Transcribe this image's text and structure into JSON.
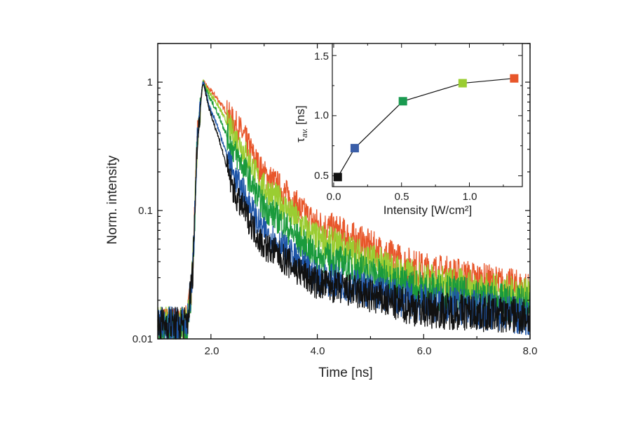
{
  "chart_data": [
    {
      "type": "line",
      "xlabel": "Time [ns]",
      "ylabel": "Norm. intensity",
      "xlim": [
        1.0,
        8.0
      ],
      "ylim": [
        0.01,
        2.0
      ],
      "yscale": "log",
      "grid": false,
      "x_ticks": [
        "2.0",
        "4.0",
        "6.0",
        "8.0"
      ],
      "y_ticks": [
        "0.01",
        "0.1",
        "1"
      ],
      "x": [
        1.0,
        1.55,
        1.65,
        1.75,
        1.85,
        2.0,
        2.5,
        3.0,
        4.0,
        6.0,
        8.0
      ],
      "series": [
        {
          "color": "#e8562a",
          "values": [
            0.013,
            0.013,
            0.03,
            0.4,
            1.0,
            0.85,
            0.45,
            0.19,
            0.078,
            0.034,
            0.024
          ]
        },
        {
          "color": "#9acd32",
          "values": [
            0.013,
            0.013,
            0.03,
            0.4,
            1.0,
            0.8,
            0.35,
            0.15,
            0.06,
            0.028,
            0.021
          ]
        },
        {
          "color": "#1a9a3c",
          "values": [
            0.011,
            0.011,
            0.03,
            0.4,
            1.0,
            0.72,
            0.26,
            0.106,
            0.044,
            0.024,
            0.018
          ]
        },
        {
          "color": "#1f56a8",
          "values": [
            0.013,
            0.013,
            0.03,
            0.4,
            1.0,
            0.6,
            0.165,
            0.068,
            0.03,
            0.019,
            0.015
          ]
        },
        {
          "color": "#111111",
          "values": [
            0.013,
            0.013,
            0.03,
            0.4,
            1.0,
            0.55,
            0.12,
            0.053,
            0.027,
            0.017,
            0.015
          ]
        }
      ]
    },
    {
      "type": "line",
      "xlabel": "Intensity [W/cm²]",
      "ylabel_main": "τ",
      "ylabel_sub": "av.",
      "ylabel_unit": " [ns]",
      "xlim": [
        -0.01,
        1.39
      ],
      "ylim": [
        0.41,
        1.6
      ],
      "grid": false,
      "x_ticks": [
        "0.0",
        "0.5",
        "1.0"
      ],
      "y_ticks": [
        "0.5",
        "1.0",
        "1.5"
      ],
      "x": [
        0.03,
        0.155,
        0.51,
        0.95,
        1.33
      ],
      "values": [
        0.49,
        0.73,
        1.12,
        1.27,
        1.31
      ],
      "marker_colors": [
        "#111111",
        "#3a5ea8",
        "#1a9a50",
        "#9acd32",
        "#e8562a"
      ]
    }
  ]
}
